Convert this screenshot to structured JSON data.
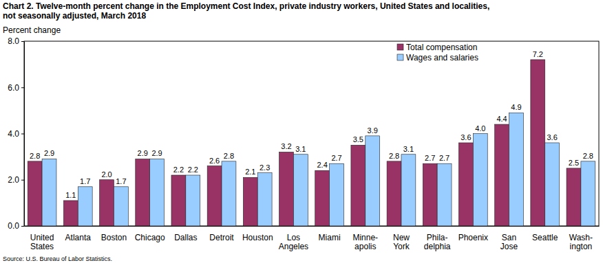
{
  "chart_data": {
    "type": "bar",
    "title": "Chart 2. Twelve-month percent change in the Employment Cost Index, private industry workers, United States and localities,\nnot seasonally adjusted, March 2018",
    "y_label": "Percent change",
    "source": "Source: U.S. Bureau of Labor Statistics.",
    "categories": [
      "United\nStates",
      "Atlanta",
      "Boston",
      "Chicago",
      "Dallas",
      "Detroit",
      "Houston",
      "Los\nAngeles",
      "Miami",
      "Minne-\napolis",
      "New\nYork",
      "Phila-\ndelphia",
      "Phoenix",
      "San\nJose",
      "Seattle",
      "Wash-\nington"
    ],
    "series": [
      {
        "name": "Total compensation",
        "color": "#993366",
        "values": [
          2.8,
          1.1,
          2.0,
          2.9,
          2.2,
          2.6,
          2.1,
          3.2,
          2.4,
          3.5,
          2.8,
          2.7,
          3.6,
          4.4,
          7.2,
          2.5
        ],
        "value_labels": [
          "2.8",
          "1.1",
          "2.0",
          "2.9",
          "2.2",
          "2.6",
          "2.1",
          "3.2",
          "2.4",
          "3.5",
          "2.8",
          "2.7",
          "3.6",
          "4.4",
          "7.2",
          "2.5"
        ]
      },
      {
        "name": "Wages and salaries",
        "color": "#99ccff",
        "values": [
          2.9,
          1.7,
          1.7,
          2.9,
          2.2,
          2.8,
          2.3,
          3.1,
          2.7,
          3.9,
          3.1,
          2.7,
          4.0,
          4.9,
          3.6,
          2.8
        ],
        "value_labels": [
          "2.9",
          "1.7",
          "1.7",
          "2.9",
          "2.2",
          "2.8",
          "2.3",
          "3.1",
          "2.7",
          "3.9",
          "3.1",
          "2.7",
          "4.0",
          "4.9",
          "3.6",
          "2.8"
        ]
      }
    ],
    "ylim": [
      0,
      8
    ],
    "yticks": [
      {
        "value": 0,
        "label": "0.0"
      },
      {
        "value": 2,
        "label": "2.0"
      },
      {
        "value": 4,
        "label": "4.0"
      },
      {
        "value": 6,
        "label": "6.0"
      },
      {
        "value": 8,
        "label": "8.0"
      }
    ],
    "grid": false,
    "legend": "upper right",
    "data_labels": true
  }
}
